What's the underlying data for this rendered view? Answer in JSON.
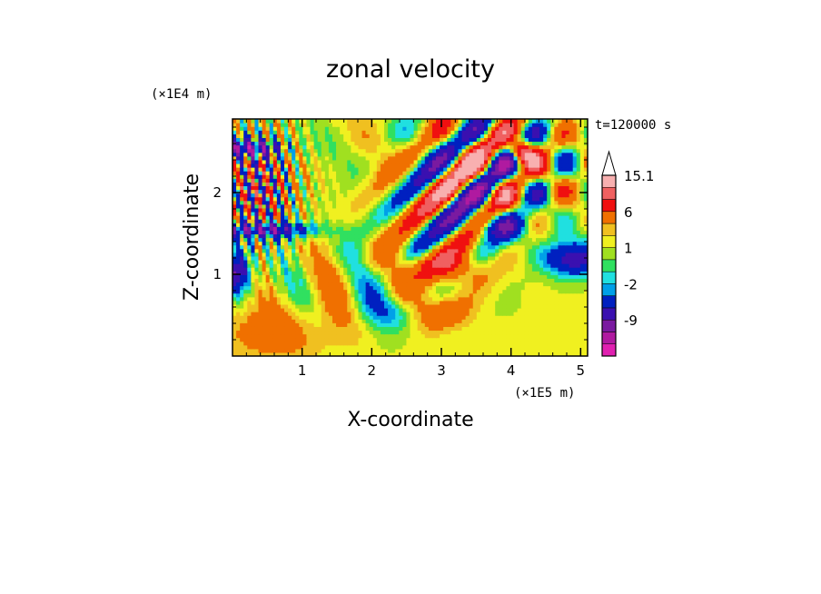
{
  "chart_data": {
    "type": "heatmap",
    "title": "zonal velocity",
    "xlabel": "X-coordinate",
    "ylabel": "Z-coordinate",
    "x_unit": "(×1E5 m)",
    "y_unit": "(×1E4 m)",
    "time_label": "t=120000 s",
    "xlim": [
      0,
      5.1
    ],
    "ylim": [
      0,
      2.9
    ],
    "x_ticks": [
      "1",
      "2",
      "3",
      "4",
      "5"
    ],
    "y_ticks": [
      "1",
      "2"
    ],
    "colorbar": {
      "levels": [
        -15,
        -12,
        -9,
        -6,
        -3,
        -2,
        -1,
        0,
        1,
        2,
        3,
        6,
        9,
        12,
        15.1
      ],
      "tick_labels": [
        "15.1",
        "6",
        "1",
        "-2",
        "-9"
      ],
      "colors": [
        "#e020b0",
        "#b01aa0",
        "#7a1aa0",
        "#3a10b0",
        "#0020c0",
        "#00a0e8",
        "#20e0e0",
        "#30e060",
        "#a0e020",
        "#f0f020",
        "#f0c020",
        "#f07000",
        "#f01010",
        "#f06060",
        "#f8b0b0"
      ]
    }
  }
}
